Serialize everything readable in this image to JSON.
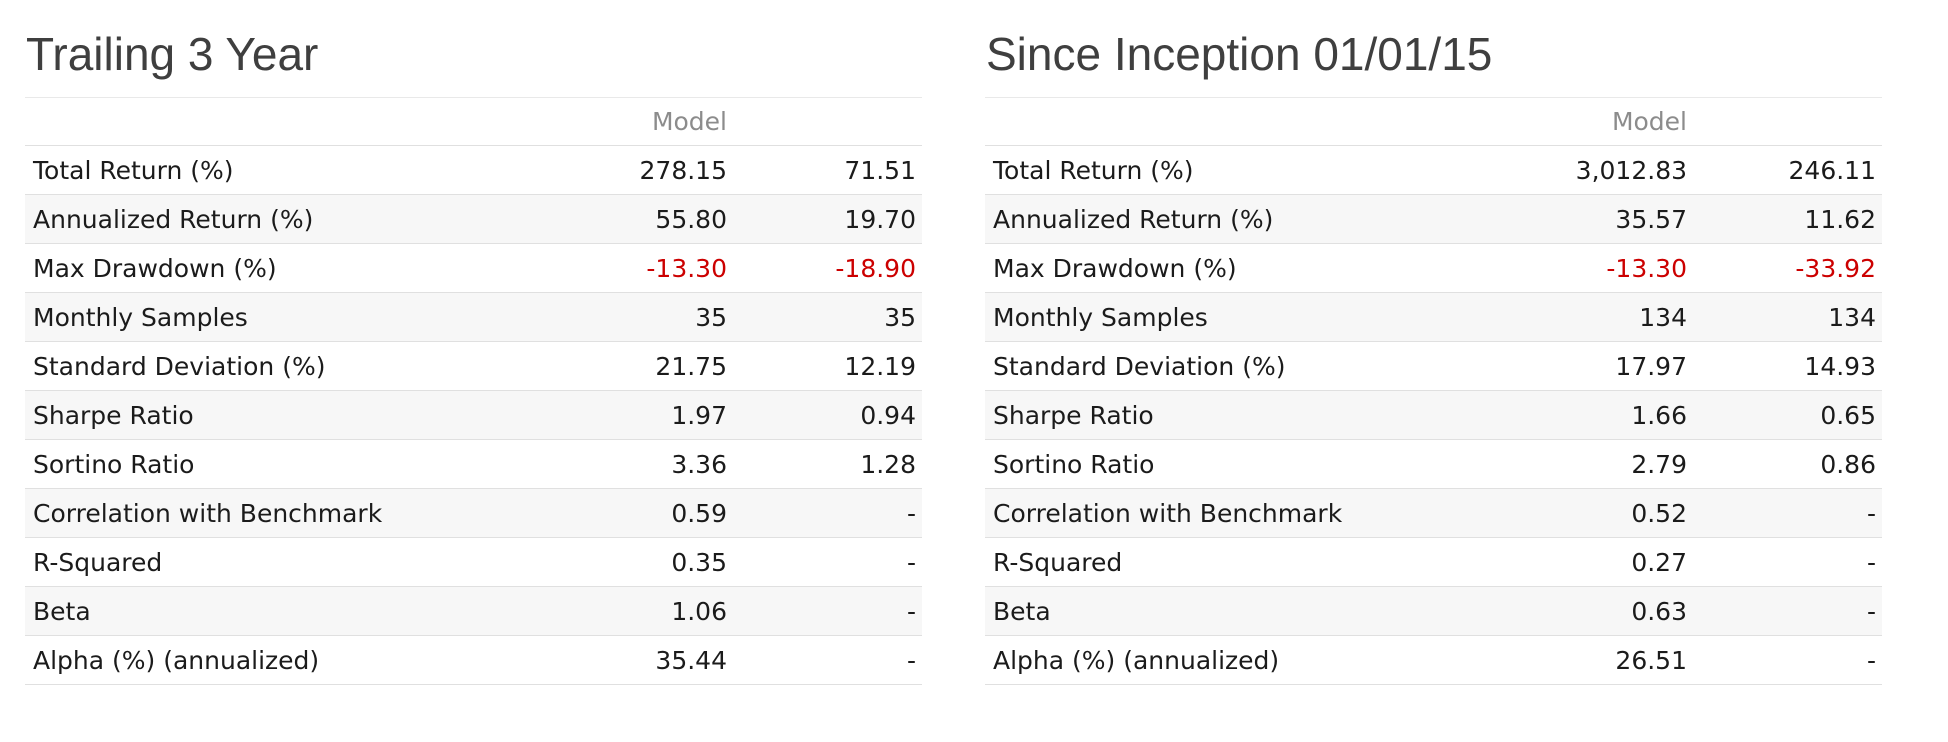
{
  "colors": {
    "negative_value": "#cc0000",
    "column_header_text": "#8c8c8c",
    "title_text": "#3f3f3f",
    "body_text": "#1b1b1b",
    "row_stripe": "#f7f7f7",
    "row_border": "#e0e0e0"
  },
  "tables": [
    {
      "title": "Trailing 3 Year",
      "columns": {
        "metric": "",
        "model": "Model",
        "benchmark": ""
      },
      "rows": [
        {
          "label": "Total Return (%)",
          "model": "278.15",
          "benchmark": "71.51"
        },
        {
          "label": "Annualized Return (%)",
          "model": "55.80",
          "benchmark": "19.70"
        },
        {
          "label": "Max Drawdown (%)",
          "model": "-13.30",
          "benchmark": "-18.90"
        },
        {
          "label": "Monthly Samples",
          "model": "35",
          "benchmark": "35"
        },
        {
          "label": "Standard Deviation (%)",
          "model": "21.75",
          "benchmark": "12.19"
        },
        {
          "label": "Sharpe Ratio",
          "model": "1.97",
          "benchmark": "0.94"
        },
        {
          "label": "Sortino Ratio",
          "model": "3.36",
          "benchmark": "1.28"
        },
        {
          "label": "Correlation with Benchmark",
          "model": "0.59",
          "benchmark": "-"
        },
        {
          "label": "R-Squared",
          "model": "0.35",
          "benchmark": "-"
        },
        {
          "label": "Beta",
          "model": "1.06",
          "benchmark": "-"
        },
        {
          "label": "Alpha (%) (annualized)",
          "model": "35.44",
          "benchmark": "-"
        }
      ]
    },
    {
      "title": "Since Inception 01/01/15",
      "columns": {
        "metric": "",
        "model": "Model",
        "benchmark": ""
      },
      "rows": [
        {
          "label": "Total Return (%)",
          "model": "3,012.83",
          "benchmark": "246.11"
        },
        {
          "label": "Annualized Return (%)",
          "model": "35.57",
          "benchmark": "11.62"
        },
        {
          "label": "Max Drawdown (%)",
          "model": "-13.30",
          "benchmark": "-33.92"
        },
        {
          "label": "Monthly Samples",
          "model": "134",
          "benchmark": "134"
        },
        {
          "label": "Standard Deviation (%)",
          "model": "17.97",
          "benchmark": "14.93"
        },
        {
          "label": "Sharpe Ratio",
          "model": "1.66",
          "benchmark": "0.65"
        },
        {
          "label": "Sortino Ratio",
          "model": "2.79",
          "benchmark": "0.86"
        },
        {
          "label": "Correlation with Benchmark",
          "model": "0.52",
          "benchmark": "-"
        },
        {
          "label": "R-Squared",
          "model": "0.27",
          "benchmark": "-"
        },
        {
          "label": "Beta",
          "model": "0.63",
          "benchmark": "-"
        },
        {
          "label": "Alpha (%) (annualized)",
          "model": "26.51",
          "benchmark": "-"
        }
      ]
    }
  ]
}
